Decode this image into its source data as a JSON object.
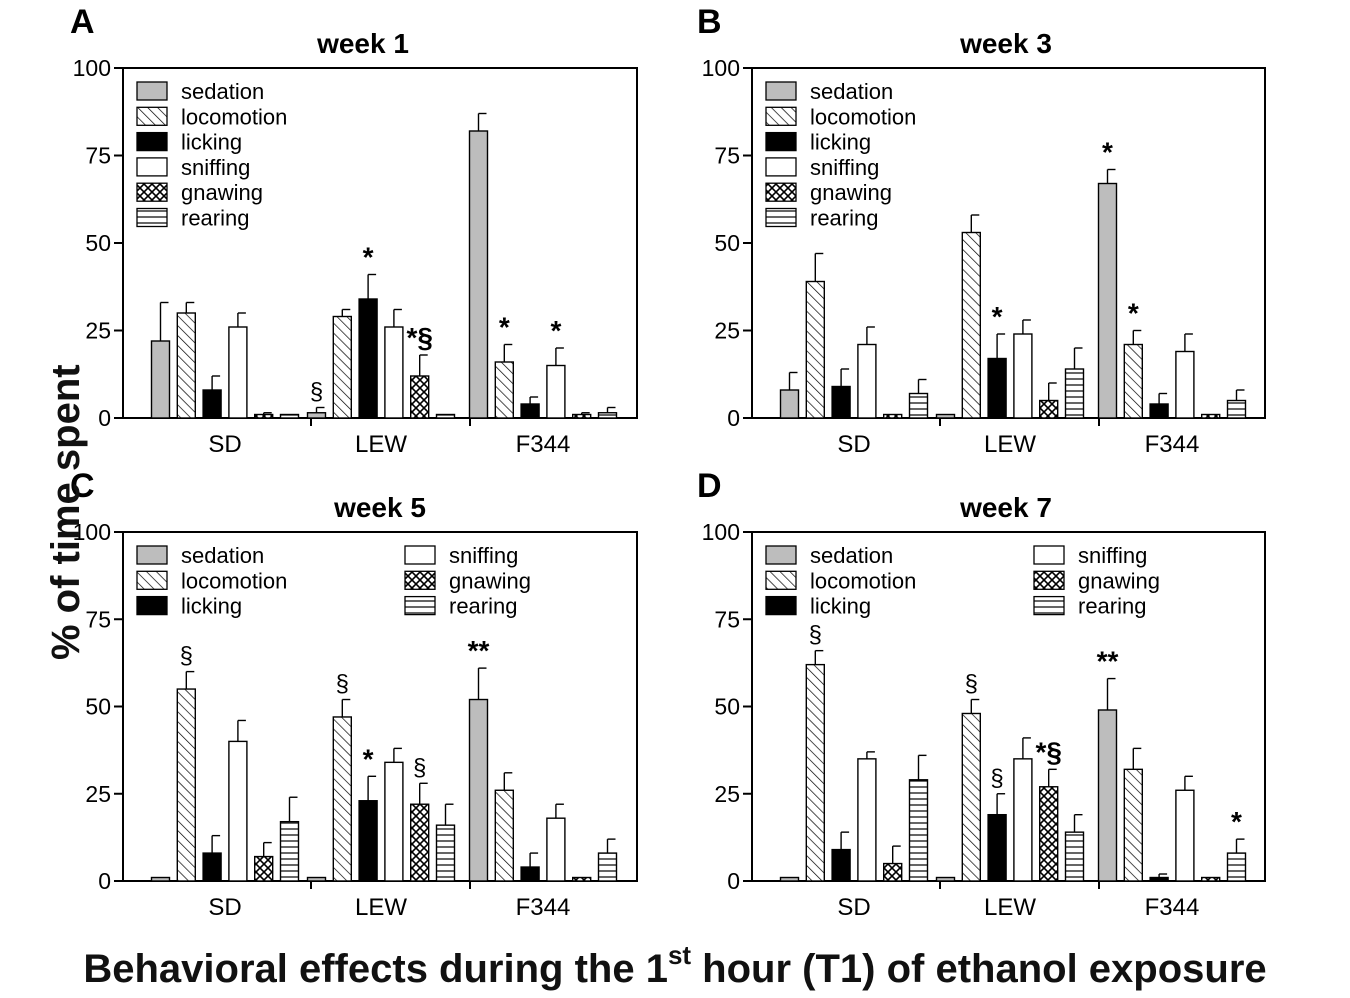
{
  "figure": {
    "ylabel": "% of time spent",
    "xlabel_pre": "Behavioral effects during the 1",
    "xlabel_sup": "st",
    "xlabel_post": " hour (T1) of ethanol exposure"
  },
  "behaviors": [
    "sedation",
    "locomotion",
    "licking",
    "sniffing",
    "gnawing",
    "rearing"
  ],
  "patterns": [
    "solid-grey",
    "diagonal-hatch",
    "solid-black",
    "white",
    "crosshatch",
    "horizontal-lines"
  ],
  "colors": {
    "grey": "#bdbdbd",
    "black": "#000000",
    "white": "#ffffff",
    "axis": "#000000"
  },
  "chart_data": [
    {
      "panel_letter": "A",
      "title": "week 1",
      "type": "bar",
      "categories": [
        "SD",
        "LEW",
        "F344"
      ],
      "ylim": [
        0,
        100
      ],
      "yticks": [
        "0",
        "25",
        "50",
        "75",
        "100"
      ],
      "legend_layout": "one-column",
      "series": [
        {
          "name": "sedation",
          "values": [
            22,
            1.5,
            82
          ],
          "errors": [
            11,
            1.5,
            5
          ],
          "annotations": [
            "",
            "§",
            ""
          ]
        },
        {
          "name": "locomotion",
          "values": [
            30,
            29,
            16
          ],
          "errors": [
            3,
            2,
            5
          ],
          "annotations": [
            "",
            "",
            "*"
          ]
        },
        {
          "name": "licking",
          "values": [
            8,
            34,
            4
          ],
          "errors": [
            4,
            7,
            2
          ],
          "annotations": [
            "",
            "*",
            ""
          ]
        },
        {
          "name": "sniffing",
          "values": [
            26,
            26,
            15
          ],
          "errors": [
            4,
            5,
            5
          ],
          "annotations": [
            "",
            "",
            "*"
          ]
        },
        {
          "name": "gnawing",
          "values": [
            1,
            12,
            1
          ],
          "errors": [
            0.5,
            6,
            0.5
          ],
          "annotations": [
            "",
            "*§",
            ""
          ]
        },
        {
          "name": "rearing",
          "values": [
            1,
            1,
            1.5
          ],
          "errors": [
            0,
            0,
            1.5
          ],
          "annotations": [
            "",
            "",
            ""
          ]
        }
      ]
    },
    {
      "panel_letter": "B",
      "title": "week 3",
      "type": "bar",
      "categories": [
        "SD",
        "LEW",
        "F344"
      ],
      "ylim": [
        0,
        100
      ],
      "yticks": [
        "0",
        "25",
        "50",
        "75",
        "100"
      ],
      "legend_layout": "one-column",
      "series": [
        {
          "name": "sedation",
          "values": [
            8,
            1,
            67
          ],
          "errors": [
            5,
            0,
            4
          ],
          "annotations": [
            "",
            "",
            "*"
          ]
        },
        {
          "name": "locomotion",
          "values": [
            39,
            53,
            21
          ],
          "errors": [
            8,
            5,
            4
          ],
          "annotations": [
            "",
            "",
            "*"
          ]
        },
        {
          "name": "licking",
          "values": [
            9,
            17,
            4
          ],
          "errors": [
            5,
            7,
            3
          ],
          "annotations": [
            "",
            "*",
            ""
          ]
        },
        {
          "name": "sniffing",
          "values": [
            21,
            24,
            19
          ],
          "errors": [
            5,
            4,
            5
          ],
          "annotations": [
            "",
            "",
            ""
          ]
        },
        {
          "name": "gnawing",
          "values": [
            1,
            5,
            1
          ],
          "errors": [
            0,
            5,
            0
          ],
          "annotations": [
            "",
            "",
            ""
          ]
        },
        {
          "name": "rearing",
          "values": [
            7,
            14,
            5
          ],
          "errors": [
            4,
            6,
            3
          ],
          "annotations": [
            "",
            "",
            ""
          ]
        }
      ]
    },
    {
      "panel_letter": "C",
      "title": "week 5",
      "type": "bar",
      "categories": [
        "SD",
        "LEW",
        "F344"
      ],
      "ylim": [
        0,
        100
      ],
      "yticks": [
        "0",
        "25",
        "50",
        "75",
        "100"
      ],
      "legend_layout": "two-column",
      "series": [
        {
          "name": "sedation",
          "values": [
            1,
            1,
            52
          ],
          "errors": [
            0,
            0,
            9
          ],
          "annotations": [
            "",
            "",
            "**"
          ]
        },
        {
          "name": "locomotion",
          "values": [
            55,
            47,
            26
          ],
          "errors": [
            5,
            5,
            5
          ],
          "annotations": [
            "§",
            "§",
            ""
          ]
        },
        {
          "name": "licking",
          "values": [
            8,
            23,
            4
          ],
          "errors": [
            5,
            7,
            4
          ],
          "annotations": [
            "",
            "*",
            ""
          ]
        },
        {
          "name": "sniffing",
          "values": [
            40,
            34,
            18
          ],
          "errors": [
            6,
            4,
            4
          ],
          "annotations": [
            "",
            "",
            ""
          ]
        },
        {
          "name": "gnawing",
          "values": [
            7,
            22,
            1
          ],
          "errors": [
            4,
            6,
            0
          ],
          "annotations": [
            "",
            "§",
            ""
          ]
        },
        {
          "name": "rearing",
          "values": [
            17,
            16,
            8
          ],
          "errors": [
            7,
            6,
            4
          ],
          "annotations": [
            "",
            "",
            ""
          ]
        }
      ]
    },
    {
      "panel_letter": "D",
      "title": "week 7",
      "type": "bar",
      "categories": [
        "SD",
        "LEW",
        "F344"
      ],
      "ylim": [
        0,
        100
      ],
      "yticks": [
        "0",
        "25",
        "50",
        "75",
        "100"
      ],
      "legend_layout": "two-column",
      "series": [
        {
          "name": "sedation",
          "values": [
            1,
            1,
            49
          ],
          "errors": [
            0,
            0,
            9
          ],
          "annotations": [
            "",
            "",
            "**"
          ]
        },
        {
          "name": "locomotion",
          "values": [
            62,
            48,
            32
          ],
          "errors": [
            4,
            4,
            6
          ],
          "annotations": [
            "§",
            "§",
            ""
          ]
        },
        {
          "name": "licking",
          "values": [
            9,
            19,
            1
          ],
          "errors": [
            5,
            6,
            1
          ],
          "annotations": [
            "",
            "§",
            ""
          ]
        },
        {
          "name": "sniffing",
          "values": [
            35,
            35,
            26
          ],
          "errors": [
            2,
            6,
            4
          ],
          "annotations": [
            "",
            "",
            ""
          ]
        },
        {
          "name": "gnawing",
          "values": [
            5,
            27,
            1
          ],
          "errors": [
            5,
            5,
            0
          ],
          "annotations": [
            "",
            "*§",
            ""
          ]
        },
        {
          "name": "rearing",
          "values": [
            29,
            14,
            8
          ],
          "errors": [
            7,
            5,
            4
          ],
          "annotations": [
            "",
            "",
            "*"
          ]
        }
      ]
    }
  ]
}
